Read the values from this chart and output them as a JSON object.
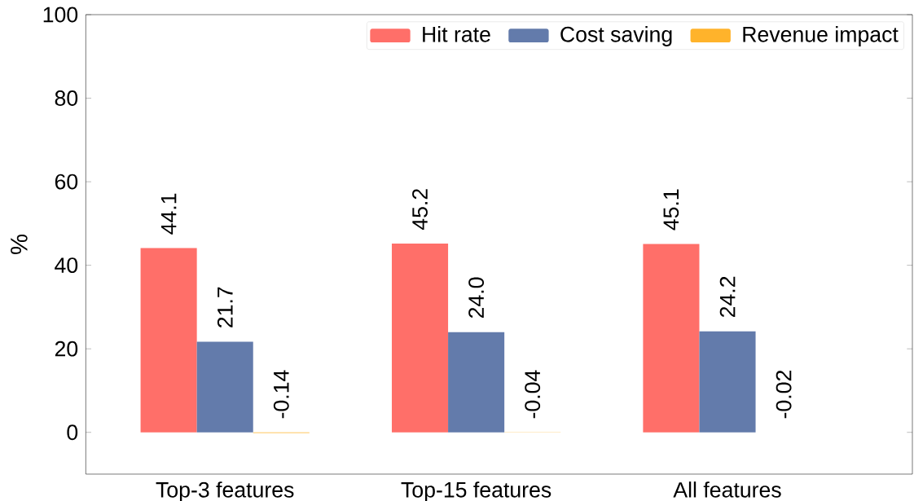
{
  "chart_data": {
    "type": "bar",
    "ylabel": "%",
    "categories": [
      "Top-3 features",
      "Top-15 features",
      "All features"
    ],
    "series": [
      {
        "name": "Hit rate",
        "color": "#ff6f69",
        "values": [
          44.1,
          45.2,
          45.1
        ],
        "value_labels": [
          "44.1",
          "45.2",
          "45.1"
        ]
      },
      {
        "name": "Cost saving",
        "color": "#637bab",
        "values": [
          21.7,
          24.0,
          24.2
        ],
        "value_labels": [
          "21.7",
          "24.0",
          "24.2"
        ]
      },
      {
        "name": "Revenue impact",
        "color": "#ffb32b",
        "values": [
          -0.14,
          -0.04,
          -0.02
        ],
        "value_labels": [
          "-0.14",
          "-0.04",
          "-0.02"
        ]
      }
    ],
    "ylim": [
      -10,
      100
    ],
    "yticks": [
      0,
      20,
      40,
      60,
      80,
      100
    ],
    "legend": "top right",
    "grid": false
  }
}
